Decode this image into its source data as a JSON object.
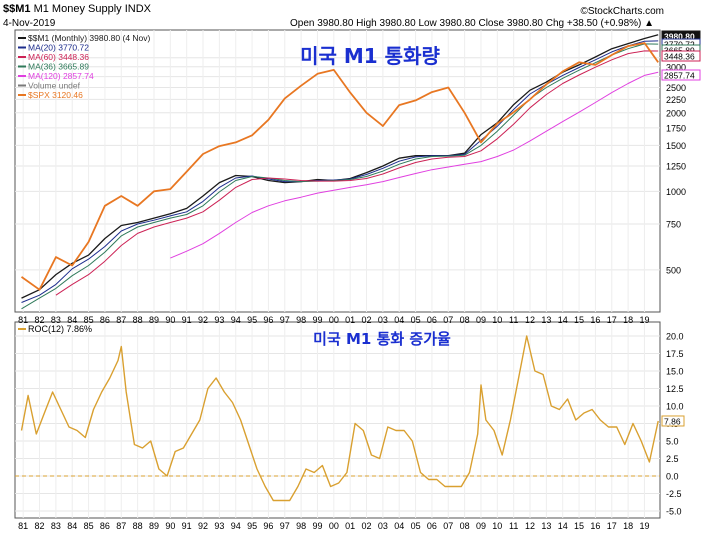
{
  "header": {
    "symbol": "$$M1",
    "name": "M1 Money Supply  INDX",
    "date": "4-Nov-2019",
    "quote": "Open 3980.80  High 3980.80  Low 3980.80  Close 3980.80  Chg +38.50 (+0.98%) ▲",
    "brand": "©StockCharts.com"
  },
  "colors": {
    "m1": "#1a1a1a",
    "ma20": "#1c2c8c",
    "ma60": "#cc2255",
    "ma36": "#2f7a5a",
    "ma120": "#e040e0",
    "volume": "#7a7a7a",
    "spx": "#e87722",
    "roc": "#d9a030",
    "korean_title": "#1a2fd0"
  },
  "legend": [
    {
      "label": "$$M1 (Monthly) 3980.80 (4 Nov)",
      "color": "#1a1a1a"
    },
    {
      "label": "MA(20) 3770.72",
      "color": "#1c2c8c"
    },
    {
      "label": "MA(60) 3448.36",
      "color": "#cc2255"
    },
    {
      "label": "MA(36) 3665.89",
      "color": "#2f7a5a"
    },
    {
      "label": "MA(120) 2857.74",
      "color": "#e040e0"
    },
    {
      "label": "Volume undef",
      "color": "#7a7a7a"
    },
    {
      "label": "$SPX 3120.46",
      "color": "#e87722"
    }
  ],
  "roc_legend": "ROC(12) 7.86%",
  "korean_title_top": "미국 M1 통화량",
  "korean_title_bottom": "미국 M1 통화 증가율",
  "value_tags_top": [
    "3980.80",
    "3770.72",
    "3665.89",
    "3448.36",
    "2857.74"
  ],
  "value_tag_bottom": "7.86",
  "chart_data": [
    {
      "type": "line",
      "title": "M1 Money Supply",
      "y_scale": "log",
      "y_ticks": [
        500,
        750,
        1000,
        1250,
        1500,
        1750,
        2000,
        2250,
        2500,
        2750,
        3000,
        3250
      ],
      "x_labels": [
        "81",
        "82",
        "83",
        "84",
        "85",
        "86",
        "87",
        "88",
        "89",
        "90",
        "91",
        "92",
        "93",
        "94",
        "95",
        "96",
        "97",
        "98",
        "99",
        "00",
        "01",
        "02",
        "03",
        "04",
        "05",
        "06",
        "07",
        "08",
        "09",
        "10",
        "11",
        "12",
        "13",
        "14",
        "15",
        "16",
        "17",
        "18",
        "19"
      ],
      "x": [
        1980.9,
        1982.0,
        1983.0,
        1984.0,
        1985.0,
        1986.0,
        1987.0,
        1988.0,
        1989.0,
        1990.0,
        1991.0,
        1992.0,
        1993.0,
        1994.0,
        1995.0,
        1996.0,
        1997.0,
        1998.0,
        1999.0,
        2000.0,
        2001.0,
        2002.0,
        2003.0,
        2004.0,
        2005.0,
        2006.0,
        2007.0,
        2008.0,
        2009.0,
        2010.0,
        2011.0,
        2012.0,
        2013.0,
        2014.0,
        2015.0,
        2016.0,
        2017.0,
        2018.0,
        2019.0,
        2019.84
      ],
      "series": [
        {
          "name": "$$M1",
          "values": [
            390,
            420,
            480,
            530,
            570,
            660,
            740,
            760,
            790,
            820,
            860,
            960,
            1080,
            1150,
            1140,
            1100,
            1080,
            1090,
            1110,
            1100,
            1120,
            1180,
            1250,
            1340,
            1370,
            1370,
            1370,
            1400,
            1650,
            1830,
            2150,
            2440,
            2620,
            2860,
            3050,
            3270,
            3520,
            3680,
            3850,
            3980
          ]
        },
        {
          "name": "MA(20)",
          "values": [
            375,
            400,
            440,
            505,
            550,
            615,
            705,
            750,
            775,
            805,
            835,
            915,
            1035,
            1125,
            1145,
            1115,
            1090,
            1090,
            1100,
            1105,
            1115,
            1160,
            1225,
            1305,
            1355,
            1370,
            1370,
            1385,
            1570,
            1775,
            2060,
            2360,
            2570,
            2780,
            2980,
            3190,
            3420,
            3610,
            3760,
            3771
          ]
        },
        {
          "name": "MA(36)",
          "values": [
            355,
            390,
            425,
            475,
            520,
            585,
            675,
            730,
            760,
            790,
            815,
            880,
            995,
            1100,
            1140,
            1125,
            1100,
            1090,
            1095,
            1100,
            1110,
            1140,
            1195,
            1270,
            1330,
            1360,
            1365,
            1375,
            1500,
            1700,
            1960,
            2260,
            2500,
            2710,
            2910,
            3110,
            3330,
            3520,
            3670,
            3666
          ]
        },
        {
          "name": "MA(60)",
          "values": [
            null,
            null,
            400,
            440,
            480,
            540,
            620,
            690,
            730,
            760,
            790,
            835,
            925,
            1035,
            1110,
            1125,
            1115,
            1100,
            1095,
            1095,
            1100,
            1120,
            1165,
            1230,
            1290,
            1330,
            1350,
            1360,
            1430,
            1590,
            1810,
            2090,
            2350,
            2590,
            2790,
            2990,
            3190,
            3370,
            3450,
            3448
          ]
        },
        {
          "name": "MA(120)",
          "values": [
            null,
            null,
            null,
            null,
            null,
            null,
            null,
            null,
            null,
            555,
            590,
            630,
            690,
            760,
            830,
            880,
            920,
            950,
            985,
            1010,
            1035,
            1060,
            1090,
            1130,
            1170,
            1210,
            1240,
            1270,
            1300,
            1360,
            1440,
            1560,
            1700,
            1850,
            2010,
            2190,
            2390,
            2590,
            2780,
            2858
          ]
        },
        {
          "name": "$SPX",
          "values": [
            470,
            420,
            560,
            520,
            640,
            880,
            960,
            880,
            1000,
            1020,
            1190,
            1390,
            1490,
            1540,
            1640,
            1880,
            2270,
            2540,
            2820,
            2920,
            2390,
            2000,
            1780,
            2140,
            2230,
            2400,
            2500,
            2000,
            1540,
            1820,
            2010,
            2250,
            2570,
            2880,
            3120,
            3050,
            3330,
            3600,
            3700,
            3120
          ]
        }
      ]
    },
    {
      "type": "line",
      "title": "ROC(12)",
      "ylim": [
        -6,
        22
      ],
      "y_ticks": [
        -5.0,
        -2.5,
        0.0,
        2.5,
        5.0,
        7.5,
        10.0,
        12.5,
        15.0,
        17.5,
        20.0
      ],
      "x": [
        1980.9,
        1981.3,
        1981.8,
        1982.3,
        1982.8,
        1983.3,
        1983.8,
        1984.3,
        1984.8,
        1985.3,
        1985.8,
        1986.3,
        1986.8,
        1987.0,
        1987.3,
        1987.8,
        1988.3,
        1988.8,
        1989.3,
        1989.8,
        1990.3,
        1990.8,
        1991.3,
        1991.8,
        1992.3,
        1992.8,
        1993.3,
        1993.8,
        1994.3,
        1994.8,
        1995.3,
        1995.8,
        1996.3,
        1996.8,
        1997.3,
        1997.8,
        1998.3,
        1998.8,
        1999.3,
        1999.8,
        2000.3,
        2000.8,
        2001.3,
        2001.8,
        2002.3,
        2002.8,
        2003.3,
        2003.8,
        2004.3,
        2004.8,
        2005.3,
        2005.8,
        2006.3,
        2006.8,
        2007.3,
        2007.8,
        2008.3,
        2008.8,
        2009.0,
        2009.3,
        2009.8,
        2010.3,
        2010.8,
        2011.3,
        2011.8,
        2012.3,
        2012.8,
        2013.3,
        2013.8,
        2014.3,
        2014.8,
        2015.3,
        2015.8,
        2016.3,
        2016.8,
        2017.3,
        2017.8,
        2018.3,
        2018.8,
        2019.3,
        2019.84
      ],
      "series": [
        {
          "name": "ROC(12)",
          "values": [
            6.5,
            11.5,
            6.0,
            9.0,
            12.0,
            9.5,
            7.0,
            6.5,
            5.5,
            9.5,
            12.0,
            14.0,
            16.5,
            18.5,
            12.0,
            4.5,
            4.0,
            5.0,
            1.0,
            0.0,
            3.5,
            4.0,
            6.0,
            8.0,
            12.5,
            14.0,
            12.0,
            10.5,
            8.0,
            4.5,
            1.0,
            -1.5,
            -3.5,
            -3.5,
            -3.5,
            -1.5,
            1.0,
            0.5,
            1.5,
            -1.5,
            -1.0,
            0.5,
            7.5,
            6.5,
            3.0,
            2.5,
            7.0,
            6.5,
            6.5,
            5.0,
            0.5,
            -0.5,
            -0.5,
            -1.5,
            -1.5,
            -1.5,
            0.5,
            6.0,
            13.0,
            8.0,
            6.5,
            3.0,
            8.0,
            14.0,
            20.0,
            15.0,
            14.5,
            10.0,
            9.5,
            11.0,
            8.0,
            9.0,
            9.5,
            8.0,
            7.0,
            7.0,
            4.5,
            7.5,
            5.0,
            2.0,
            7.86
          ]
        }
      ]
    }
  ]
}
